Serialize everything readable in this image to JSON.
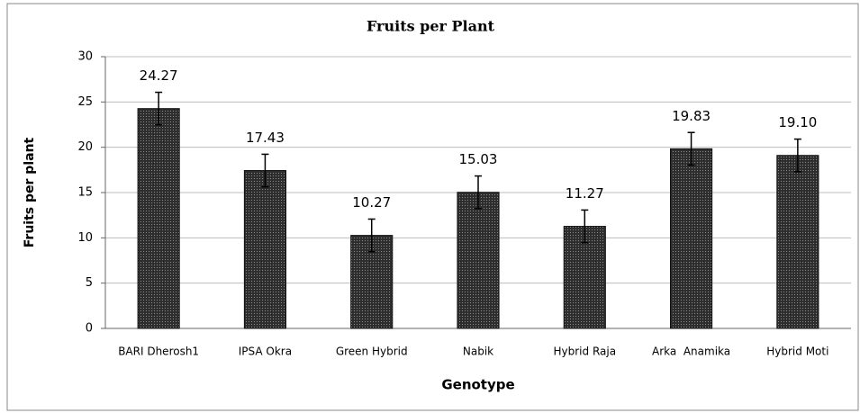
{
  "chart_data": {
    "type": "bar",
    "title": "Fruits per Plant",
    "categories": [
      "BARI Dherosh1",
      "IPSA Okra",
      "Green Hybrid",
      "Nabik",
      "Hybrid Raja",
      "Arka  Anamika",
      "Hybrid Moti"
    ],
    "values": [
      24.27,
      17.43,
      10.27,
      15.03,
      11.27,
      19.83,
      19.1
    ],
    "value_labels": [
      "24.27",
      "17.43",
      "10.27",
      "15.03",
      "11.27",
      "19.83",
      "19.10"
    ],
    "errors": [
      1.8,
      1.8,
      1.8,
      1.8,
      1.8,
      1.8,
      1.8
    ],
    "color": "#3c3c3c",
    "ylim": [
      0,
      30
    ],
    "yticks": [
      0,
      5,
      10,
      15,
      20,
      25,
      30
    ],
    "grid": true,
    "xlabel": "Genotype",
    "ylabel": "Fruits per plant"
  }
}
